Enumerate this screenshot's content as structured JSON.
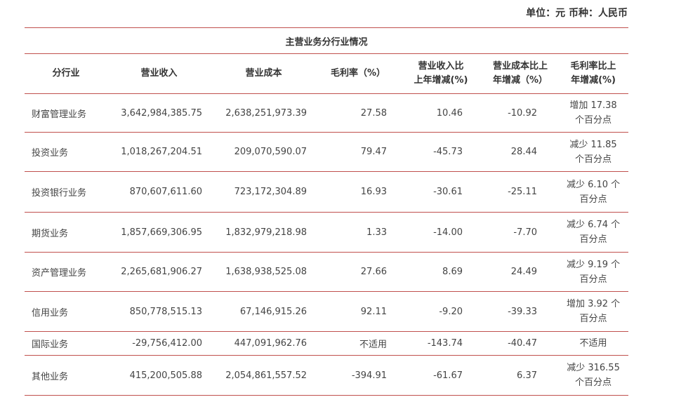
{
  "unit_note": "单位：元  币种：人民币",
  "table": {
    "title": "主营业务分行业情况",
    "headers": [
      "分行业",
      "营业收入",
      "营业成本",
      "毛利率（%）",
      "营业收入比\n上年增减(%)",
      "营业成本比上\n年增减（%）",
      "毛利率比上\n年增减(%)"
    ],
    "rows": [
      {
        "name": "财富管理业务",
        "revenue": "3,642,984,385.75",
        "cost": "2,638,251,973.39",
        "margin": "27.58",
        "revenue_change": "10.46",
        "cost_change": "-10.92",
        "margin_change": "增加 17.38\n个百分点"
      },
      {
        "name": "投资业务",
        "revenue": "1,018,267,204.51",
        "cost": "209,070,590.07",
        "margin": "79.47",
        "revenue_change": "-45.73",
        "cost_change": "28.44",
        "margin_change": "减少 11.85\n个百分点"
      },
      {
        "name": "投资银行业务",
        "revenue": "870,607,611.60",
        "cost": "723,172,304.89",
        "margin": "16.93",
        "revenue_change": "-30.61",
        "cost_change": "-25.11",
        "margin_change": "减少 6.10 个\n百分点"
      },
      {
        "name": "期货业务",
        "revenue": "1,857,669,306.95",
        "cost": "1,832,979,218.98",
        "margin": "1.33",
        "revenue_change": "-14.00",
        "cost_change": "-7.70",
        "margin_change": "减少 6.74 个\n百分点"
      },
      {
        "name": "资产管理业务",
        "revenue": "2,265,681,906.27",
        "cost": "1,638,938,525.08",
        "margin": "27.66",
        "revenue_change": "8.69",
        "cost_change": "24.49",
        "margin_change": "减少 9.19 个\n百分点"
      },
      {
        "name": "信用业务",
        "revenue": "850,778,515.13",
        "cost": "67,146,915.26",
        "margin": "92.11",
        "revenue_change": "-9.20",
        "cost_change": "-39.33",
        "margin_change": "增加 3.92 个\n百分点"
      },
      {
        "name": "国际业务",
        "revenue": "-29,756,412.00",
        "cost": "447,091,962.76",
        "margin": "不适用",
        "revenue_change": "-143.74",
        "cost_change": "-40.47",
        "margin_change": "不适用"
      },
      {
        "name": "其他业务",
        "revenue": "415,200,505.88",
        "cost": "2,054,861,557.52",
        "margin": "-394.91",
        "revenue_change": "-61.67",
        "cost_change": "6.37",
        "margin_change": "减少 316.55\n个百分点"
      }
    ]
  },
  "colors": {
    "rule": "#c0504d",
    "text": "#333333"
  }
}
